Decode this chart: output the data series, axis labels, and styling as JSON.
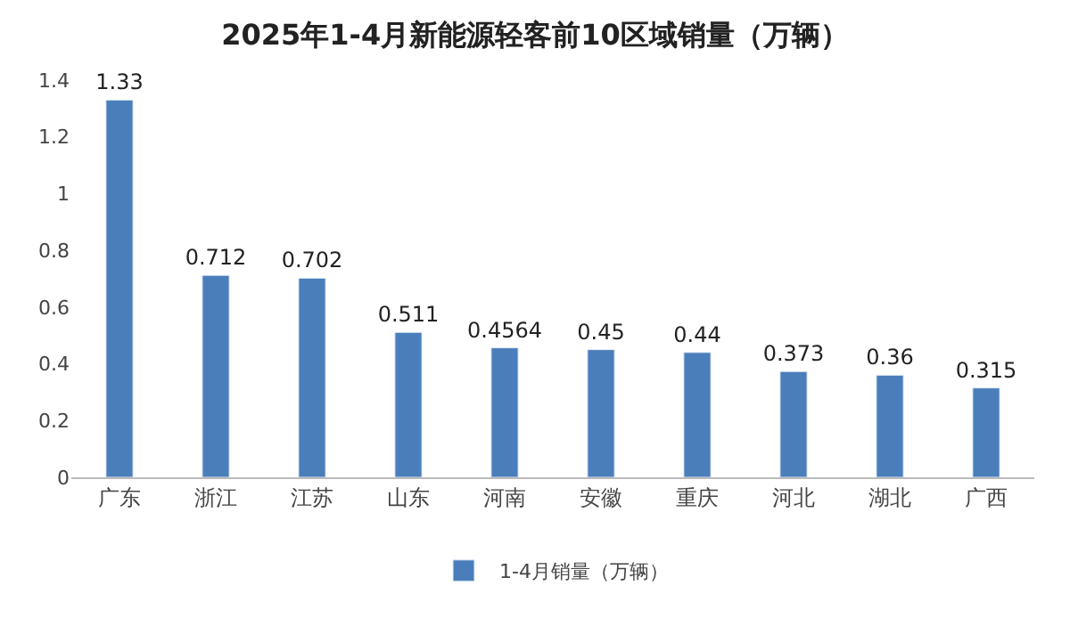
{
  "chart_data": {
    "type": "bar",
    "title": "2025年1-4月新能源轻客前10区域销量（万辆）",
    "categories": [
      "广东",
      "浙江",
      "江苏",
      "山东",
      "河南",
      "安徽",
      "重庆",
      "河北",
      "湖北",
      "广西"
    ],
    "series": [
      {
        "name": "1-4月销量（万辆）",
        "color": "#4a7ebb",
        "values": [
          1.33,
          0.712,
          0.702,
          0.511,
          0.4564,
          0.45,
          0.44,
          0.373,
          0.36,
          0.315
        ]
      }
    ],
    "ylim": [
      0,
      1.4
    ],
    "yticks": [
      0,
      0.2,
      0.4,
      0.6,
      0.8,
      1,
      1.2,
      1.4
    ],
    "data_labels": true,
    "legend": "bottom"
  }
}
